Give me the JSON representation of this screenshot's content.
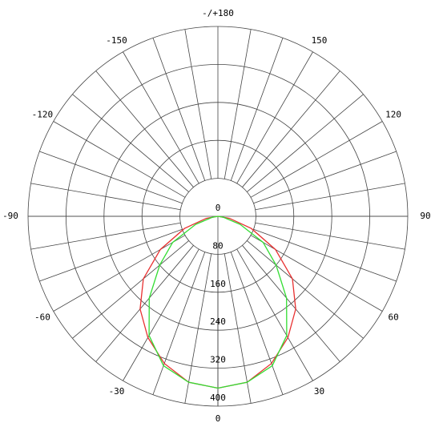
{
  "chart_data": {
    "type": "polar",
    "rlim": [
      0,
      400
    ],
    "rticks": [
      0,
      80,
      160,
      240,
      320,
      400
    ],
    "thetaticks": [
      0,
      30,
      60,
      90,
      120,
      150,
      {
        "value": 180,
        "label": "-/+180"
      },
      -150,
      -120,
      -90,
      -60,
      -30
    ],
    "theta": [
      -90,
      -80,
      -70,
      -60,
      -50,
      -40,
      -30,
      -20,
      -10,
      0,
      10,
      20,
      30,
      40,
      50,
      60,
      70,
      80,
      90
    ],
    "series": [
      {
        "color": "#e83030",
        "values": [
          0,
          25,
          75,
          140,
          205,
          255,
          295,
          330,
          355,
          362,
          355,
          330,
          295,
          255,
          205,
          140,
          75,
          25,
          0
        ]
      },
      {
        "color": "#33dd33",
        "values": [
          0,
          12,
          50,
          110,
          160,
          225,
          290,
          335,
          355,
          362,
          355,
          335,
          290,
          225,
          160,
          110,
          50,
          12,
          0
        ]
      }
    ]
  }
}
